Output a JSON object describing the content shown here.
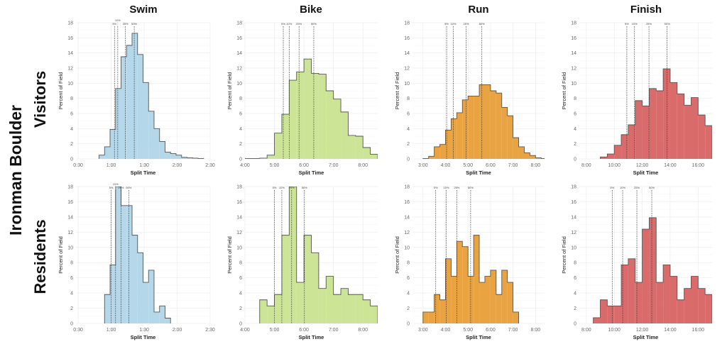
{
  "main_title": "Ironman Boulder",
  "columns": [
    "Swim",
    "Bike",
    "Run",
    "Finish"
  ],
  "rows": [
    "Visitors",
    "Residents"
  ],
  "colors": {
    "Swim": "#b4d7ea",
    "Bike": "#cbe496",
    "Run": "#e9a441",
    "Finish": "#d96b6b",
    "outline": "#555555"
  },
  "chart_data": [
    {
      "type": "bar",
      "row": "Visitors",
      "column": "Swim",
      "xlabel": "Split Time",
      "ylabel": "Percent of Field",
      "ylim": [
        0,
        18
      ],
      "xlim": [
        "0:28",
        "2:30"
      ],
      "xticks": [
        "0:30",
        "1:00",
        "1:30",
        "2:00",
        "2:30"
      ],
      "yticks": [
        0,
        2,
        4,
        6,
        8,
        10,
        12,
        14,
        16,
        18
      ],
      "bin_start": "0:49",
      "bin_width": "0:05",
      "values": [
        0.5,
        1.6,
        3.9,
        9.3,
        13.5,
        15.0,
        16.6,
        13.8,
        10.1,
        6.3,
        4.0,
        2.3,
        0.9,
        0.7,
        0.5,
        0.2,
        0.15,
        0.1,
        0.05
      ],
      "percentiles": [
        {
          "label": "5%",
          "value": "1:03"
        },
        {
          "label": "10%",
          "value": "1:06"
        },
        {
          "label": "25%",
          "value": "1:13"
        },
        {
          "label": "50%",
          "value": "1:21"
        }
      ]
    },
    {
      "type": "bar",
      "row": "Visitors",
      "column": "Bike",
      "xlabel": "Split Time",
      "ylabel": "Percent of Field",
      "ylim": [
        0,
        18
      ],
      "xlim": [
        "4:00",
        "8:30"
      ],
      "xticks": [
        "4:00",
        "5:00",
        "6:00",
        "7:00",
        "8:00"
      ],
      "yticks": [
        0,
        2,
        4,
        6,
        8,
        10,
        12,
        14,
        16,
        18
      ],
      "bin_start": "4:00",
      "bin_width": "0:15",
      "values": [
        0.05,
        0.05,
        0.1,
        0.5,
        3.4,
        5.9,
        10.4,
        11.5,
        13.2,
        11.3,
        11.2,
        9.0,
        7.9,
        6.2,
        3.1,
        3.0,
        1.5,
        0.6
      ],
      "percentiles": [
        {
          "label": "5%",
          "value": "5:18"
        },
        {
          "label": "10%",
          "value": "5:30"
        },
        {
          "label": "25%",
          "value": "5:50"
        },
        {
          "label": "50%",
          "value": "6:20"
        }
      ]
    },
    {
      "type": "bar",
      "row": "Visitors",
      "column": "Run",
      "xlabel": "Split Time",
      "ylabel": "Percent of Field",
      "ylim": [
        0,
        18
      ],
      "xlim": [
        "2:32",
        "8:24"
      ],
      "xticks": [
        "3:00",
        "4:00",
        "5:00",
        "6:00",
        "7:00",
        "8:00"
      ],
      "yticks": [
        0,
        2,
        4,
        6,
        8,
        10,
        12,
        14,
        16,
        18
      ],
      "bin_start": "3:00",
      "bin_width": "0:15",
      "values": [
        0.05,
        0.35,
        1.6,
        1.9,
        3.8,
        5.3,
        6.1,
        7.8,
        8.3,
        8.3,
        9.8,
        9.8,
        9.0,
        8.7,
        6.8,
        5.7,
        2.8,
        1.6,
        0.8,
        0.45,
        0.15,
        0.05
      ],
      "percentiles": [
        {
          "label": "5%",
          "value": "4:03"
        },
        {
          "label": "10%",
          "value": "4:21"
        },
        {
          "label": "25%",
          "value": "4:55"
        },
        {
          "label": "50%",
          "value": "5:37"
        }
      ]
    },
    {
      "type": "bar",
      "row": "Visitors",
      "column": "Finish",
      "xlabel": "Split Time",
      "ylabel": "Percent of Field",
      "ylim": [
        0,
        18
      ],
      "xlim": [
        "7:30",
        "17:00"
      ],
      "xticks": [
        "8:00",
        "10:00",
        "12:00",
        "14:00",
        "16:00"
      ],
      "yticks": [
        0,
        2,
        4,
        6,
        8,
        10,
        12,
        14,
        16,
        18
      ],
      "bin_start": "9:00",
      "bin_width": "0:30",
      "values": [
        0.25,
        0.65,
        1.8,
        3.2,
        4.5,
        7.7,
        7.0,
        9.3,
        9.0,
        11.9,
        10.1,
        8.6,
        7.1,
        8.1,
        5.8,
        4.4
      ],
      "percentiles": [
        {
          "label": "5%",
          "value": "10:54"
        },
        {
          "label": "10%",
          "value": "11:27"
        },
        {
          "label": "25%",
          "value": "12:29"
        },
        {
          "label": "50%",
          "value": "13:47"
        }
      ]
    },
    {
      "type": "bar",
      "row": "Residents",
      "column": "Swim",
      "xlabel": "Split Time",
      "ylabel": "Percent of Field",
      "ylim": [
        0,
        18
      ],
      "xlim": [
        "0:28",
        "2:30"
      ],
      "xticks": [
        "0:30",
        "1:00",
        "1:30",
        "2:00",
        "2:30"
      ],
      "yticks": [
        0,
        2,
        4,
        6,
        8,
        10,
        12,
        14,
        16,
        18
      ],
      "bin_start": "0:54",
      "bin_width": "0:05",
      "values": [
        3.8,
        7.7,
        18,
        15.5,
        15.5,
        11.6,
        9.3,
        5.4,
        7.0,
        1.5,
        2.3,
        0.7
      ],
      "percentiles": [
        {
          "label": "5%",
          "value": "1:00"
        },
        {
          "label": "10%",
          "value": "1:04"
        },
        {
          "label": "25%",
          "value": "1:09"
        },
        {
          "label": "50%",
          "value": "1:16"
        }
      ]
    },
    {
      "type": "bar",
      "row": "Residents",
      "column": "Bike",
      "xlabel": "Split Time",
      "ylabel": "Percent of Field",
      "ylim": [
        0,
        18
      ],
      "xlim": [
        "4:00",
        "8:30"
      ],
      "xticks": [
        "4:00",
        "5:00",
        "6:00",
        "7:00",
        "8:00"
      ],
      "yticks": [
        0,
        2,
        4,
        6,
        8,
        10,
        12,
        14,
        16,
        18
      ],
      "bin_start": "4:30",
      "bin_width": "0:15",
      "values": [
        3.1,
        2.3,
        3.8,
        11.6,
        18,
        5.4,
        11.6,
        9.3,
        4.6,
        6.2,
        3.8,
        4.6,
        3.8,
        3.8,
        3.1,
        2.3
      ],
      "percentiles": [
        {
          "label": "5%",
          "value": "5:00"
        },
        {
          "label": "10%",
          "value": "5:15"
        },
        {
          "label": "25%",
          "value": "5:35"
        },
        {
          "label": "50%",
          "value": "6:01"
        }
      ]
    },
    {
      "type": "bar",
      "row": "Residents",
      "column": "Run",
      "xlabel": "Split Time",
      "ylabel": "Percent of Field",
      "ylim": [
        0,
        18
      ],
      "xlim": [
        "2:32",
        "8:24"
      ],
      "xticks": [
        "3:00",
        "4:00",
        "5:00",
        "6:00",
        "7:00",
        "8:00"
      ],
      "yticks": [
        0,
        2,
        4,
        6,
        8,
        10,
        12,
        14,
        16,
        18
      ],
      "bin_start": "3:00",
      "bin_width": "0:15",
      "values": [
        1.5,
        1.5,
        3.8,
        3.1,
        8.5,
        6.2,
        10.8,
        10.1,
        6.2,
        11.6,
        5.4,
        6.2,
        7.0,
        3.8,
        7.0,
        5.4,
        1.5
      ],
      "percentiles": [
        {
          "label": "5%",
          "value": "3:34"
        },
        {
          "label": "10%",
          "value": "4:02"
        },
        {
          "label": "25%",
          "value": "4:30"
        },
        {
          "label": "50%",
          "value": "5:07"
        }
      ]
    },
    {
      "type": "bar",
      "row": "Residents",
      "column": "Finish",
      "xlabel": "Split Time",
      "ylabel": "Percent of Field",
      "ylim": [
        0,
        18
      ],
      "xlim": [
        "7:30",
        "17:00"
      ],
      "xticks": [
        "8:00",
        "10:00",
        "12:00",
        "14:00",
        "16:00"
      ],
      "yticks": [
        0,
        2,
        4,
        6,
        8,
        10,
        12,
        14,
        16,
        18
      ],
      "bin_start": "8:30",
      "bin_width": "0:30",
      "values": [
        0.75,
        3.1,
        2.3,
        2.3,
        7.7,
        8.5,
        5.4,
        12.4,
        13.9,
        5.4,
        7.7,
        6.2,
        3.1,
        4.6,
        6.2,
        4.6,
        3.8
      ],
      "percentiles": [
        {
          "label": "5%",
          "value": "9:51"
        },
        {
          "label": "10%",
          "value": "10:36"
        },
        {
          "label": "25%",
          "value": "11:37"
        },
        {
          "label": "50%",
          "value": "12:41"
        }
      ]
    }
  ]
}
